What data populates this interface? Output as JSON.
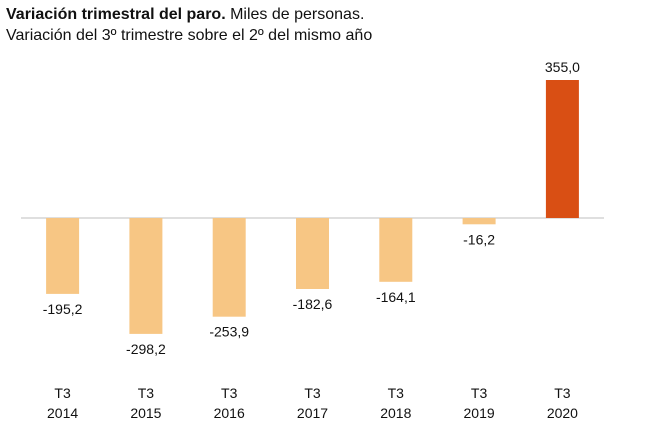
{
  "chart_data": {
    "type": "bar",
    "title": "Variación trimestral del paro.",
    "title_suffix": "Miles de personas.",
    "subtitle": "Variación del 3º trimestre sobre el 2º del mismo año",
    "categories": [
      [
        "T3",
        "2014"
      ],
      [
        "T3",
        "2015"
      ],
      [
        "T3",
        "2016"
      ],
      [
        "T3",
        "2017"
      ],
      [
        "T3",
        "2018"
      ],
      [
        "T3",
        "2019"
      ],
      [
        "T3",
        "2020"
      ]
    ],
    "values": [
      -195.2,
      -298.2,
      -253.9,
      -182.6,
      -164.1,
      -16.2,
      355.0
    ],
    "data_labels": [
      "-195,2",
      "-298,2",
      "-253,9",
      "-182,6",
      "-164,1",
      "-16,2",
      "355,0"
    ],
    "bar_colors": [
      "#f7c684",
      "#f7c684",
      "#f7c684",
      "#f7c684",
      "#f7c684",
      "#f7c684",
      "#d94f14"
    ],
    "ylim": [
      -355,
      355
    ],
    "grid": false,
    "legend": "none"
  }
}
